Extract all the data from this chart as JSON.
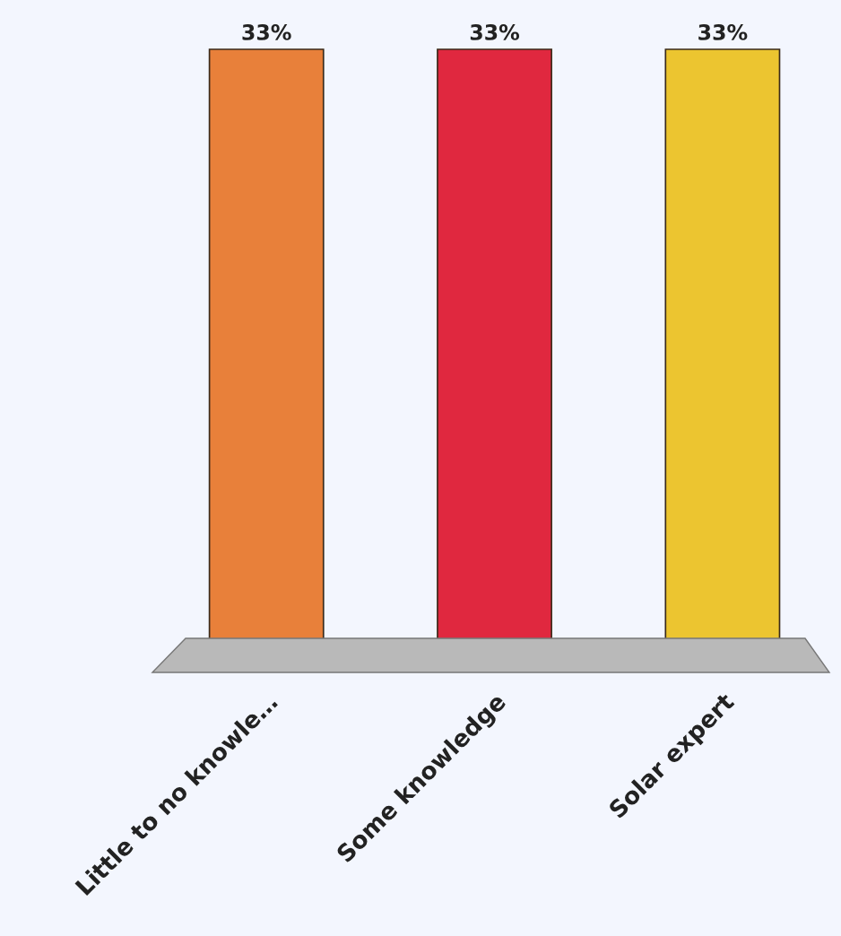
{
  "chart_data": {
    "type": "bar",
    "categories": [
      "Little to no knowle…",
      "Some knowledge",
      "Solar expert"
    ],
    "values": [
      33,
      33,
      33
    ],
    "value_labels": [
      "33%",
      "33%",
      "33%"
    ],
    "colors": [
      "#e8803a",
      "#e0283f",
      "#ecc530"
    ],
    "grid": false,
    "legend": false
  }
}
